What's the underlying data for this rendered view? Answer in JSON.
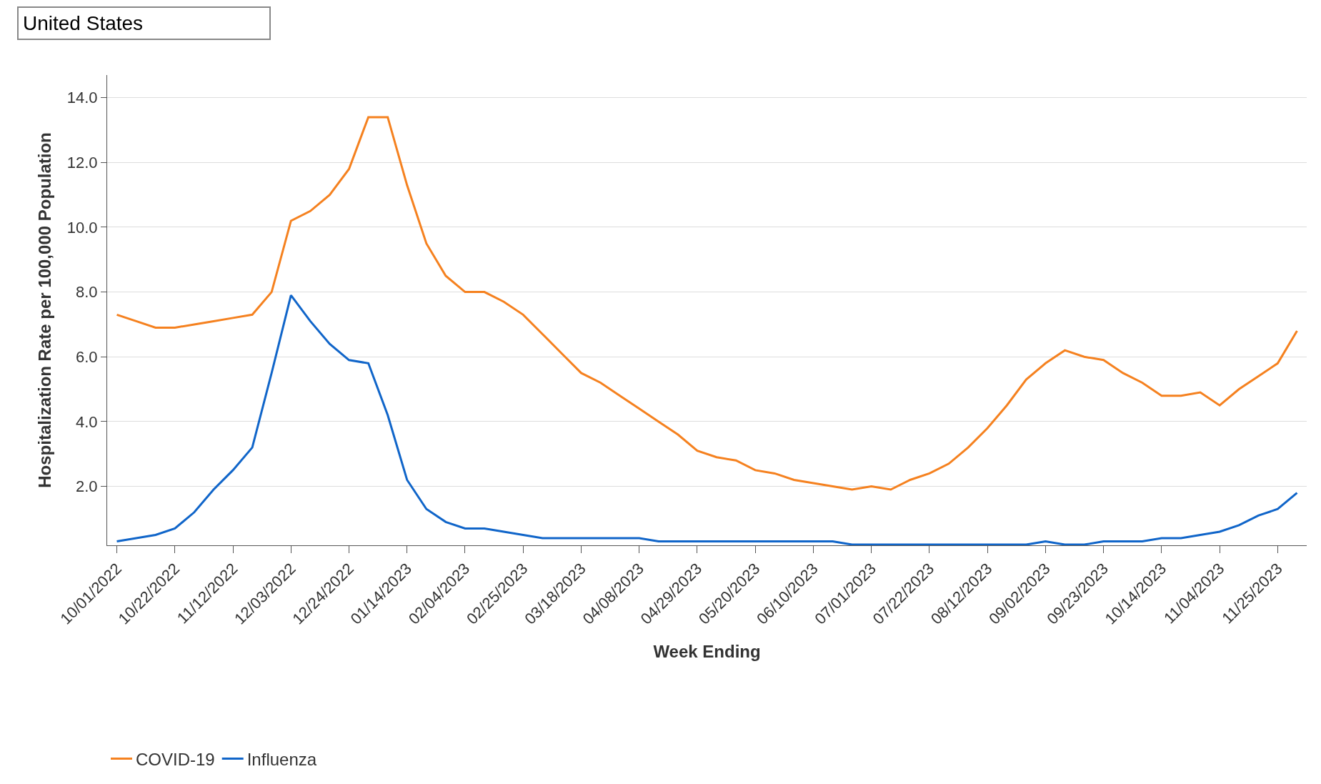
{
  "chart_data": {
    "type": "line",
    "xlabel": "Week Ending",
    "ylabel": "Hospitalization Rate per 100,000 Population",
    "annotations": [
      "United States"
    ],
    "x": [
      "2022-10-01",
      "2022-10-08",
      "2022-10-15",
      "2022-10-22",
      "2022-10-29",
      "2022-11-05",
      "2022-11-12",
      "2022-11-19",
      "2022-11-26",
      "2022-12-03",
      "2022-12-10",
      "2022-12-17",
      "2022-12-24",
      "2022-12-31",
      "2023-01-07",
      "2023-01-14",
      "2023-01-21",
      "2023-01-28",
      "2023-02-04",
      "2023-02-11",
      "2023-02-18",
      "2023-02-25",
      "2023-03-04",
      "2023-03-11",
      "2023-03-18",
      "2023-03-25",
      "2023-04-01",
      "2023-04-08",
      "2023-04-15",
      "2023-04-22",
      "2023-04-29",
      "2023-05-06",
      "2023-05-13",
      "2023-05-20",
      "2023-05-27",
      "2023-06-03",
      "2023-06-10",
      "2023-06-17",
      "2023-06-24",
      "2023-07-01",
      "2023-07-08",
      "2023-07-15",
      "2023-07-22",
      "2023-07-29",
      "2023-08-05",
      "2023-08-12",
      "2023-08-19",
      "2023-08-26",
      "2023-09-02",
      "2023-09-09",
      "2023-09-16",
      "2023-09-23",
      "2023-09-30",
      "2023-10-07",
      "2023-10-14",
      "2023-10-21",
      "2023-10-28",
      "2023-11-04",
      "2023-11-11",
      "2023-11-18",
      "2023-11-25",
      "2023-12-02"
    ],
    "series": [
      {
        "name": "COVID-19",
        "color": "#f5811f",
        "values": [
          7.3,
          7.1,
          6.9,
          6.9,
          7.0,
          7.1,
          7.2,
          7.3,
          8.0,
          10.2,
          10.5,
          11.0,
          11.8,
          13.4,
          13.4,
          11.3,
          9.5,
          8.5,
          8.0,
          8.0,
          7.7,
          7.3,
          6.7,
          6.1,
          5.5,
          5.2,
          4.8,
          4.4,
          4.0,
          3.6,
          3.1,
          2.9,
          2.8,
          2.5,
          2.4,
          2.2,
          2.1,
          2.0,
          1.9,
          2.0,
          1.9,
          2.2,
          2.4,
          2.7,
          3.2,
          3.8,
          4.5,
          5.3,
          5.8,
          6.2,
          6.0,
          5.9,
          5.5,
          5.2,
          4.8,
          4.8,
          4.9,
          4.5,
          5.0,
          5.4,
          5.8,
          6.8
        ]
      },
      {
        "name": "Influenza",
        "color": "#1065c9",
        "values": [
          0.3,
          0.4,
          0.5,
          0.7,
          1.2,
          1.9,
          2.5,
          3.2,
          5.5,
          7.9,
          7.1,
          6.4,
          5.9,
          5.8,
          4.2,
          2.2,
          1.3,
          0.9,
          0.7,
          0.7,
          0.6,
          0.5,
          0.4,
          0.4,
          0.4,
          0.4,
          0.4,
          0.4,
          0.3,
          0.3,
          0.3,
          0.3,
          0.3,
          0.3,
          0.3,
          0.3,
          0.3,
          0.3,
          0.2,
          0.2,
          0.2,
          0.2,
          0.2,
          0.2,
          0.2,
          0.2,
          0.2,
          0.2,
          0.3,
          0.2,
          0.2,
          0.3,
          0.3,
          0.3,
          0.4,
          0.4,
          0.5,
          0.6,
          0.8,
          1.1,
          1.3,
          1.8
        ]
      }
    ],
    "xlim": [
      "2022-09-27T12:00",
      "2023-12-05T12:00"
    ],
    "xticks": [
      {
        "value": "2022-10-01",
        "label": "10/01/2022"
      },
      {
        "value": "2022-10-22",
        "label": "10/22/2022"
      },
      {
        "value": "2022-11-12",
        "label": "11/12/2022"
      },
      {
        "value": "2022-12-03",
        "label": "12/03/2022"
      },
      {
        "value": "2022-12-24",
        "label": "12/24/2022"
      },
      {
        "value": "2023-01-14",
        "label": "01/14/2023"
      },
      {
        "value": "2023-02-04",
        "label": "02/04/2023"
      },
      {
        "value": "2023-02-25",
        "label": "02/25/2023"
      },
      {
        "value": "2023-03-18",
        "label": "03/18/2023"
      },
      {
        "value": "2023-04-08",
        "label": "04/08/2023"
      },
      {
        "value": "2023-04-29",
        "label": "04/29/2023"
      },
      {
        "value": "2023-05-20",
        "label": "05/20/2023"
      },
      {
        "value": "2023-06-10",
        "label": "06/10/2023"
      },
      {
        "value": "2023-07-01",
        "label": "07/01/2023"
      },
      {
        "value": "2023-07-22",
        "label": "07/22/2023"
      },
      {
        "value": "2023-08-12",
        "label": "08/12/2023"
      },
      {
        "value": "2023-09-02",
        "label": "09/02/2023"
      },
      {
        "value": "2023-09-23",
        "label": "09/23/2023"
      },
      {
        "value": "2023-10-14",
        "label": "10/14/2023"
      },
      {
        "value": "2023-11-04",
        "label": "11/04/2023"
      },
      {
        "value": "2023-11-25",
        "label": "11/25/2023"
      }
    ],
    "ylim": [
      0.18,
      14.7
    ],
    "yticks": [
      {
        "value": 2,
        "label": "2.0"
      },
      {
        "value": 4,
        "label": "4.0"
      },
      {
        "value": 6,
        "label": "6.0"
      },
      {
        "value": 8,
        "label": "8.0"
      },
      {
        "value": 10,
        "label": "10.0"
      },
      {
        "value": 12,
        "label": "12.0"
      },
      {
        "value": 14,
        "label": "14.0"
      }
    ],
    "grid": "y",
    "legend": "bottom",
    "marker": "none",
    "line_style": "solid"
  }
}
